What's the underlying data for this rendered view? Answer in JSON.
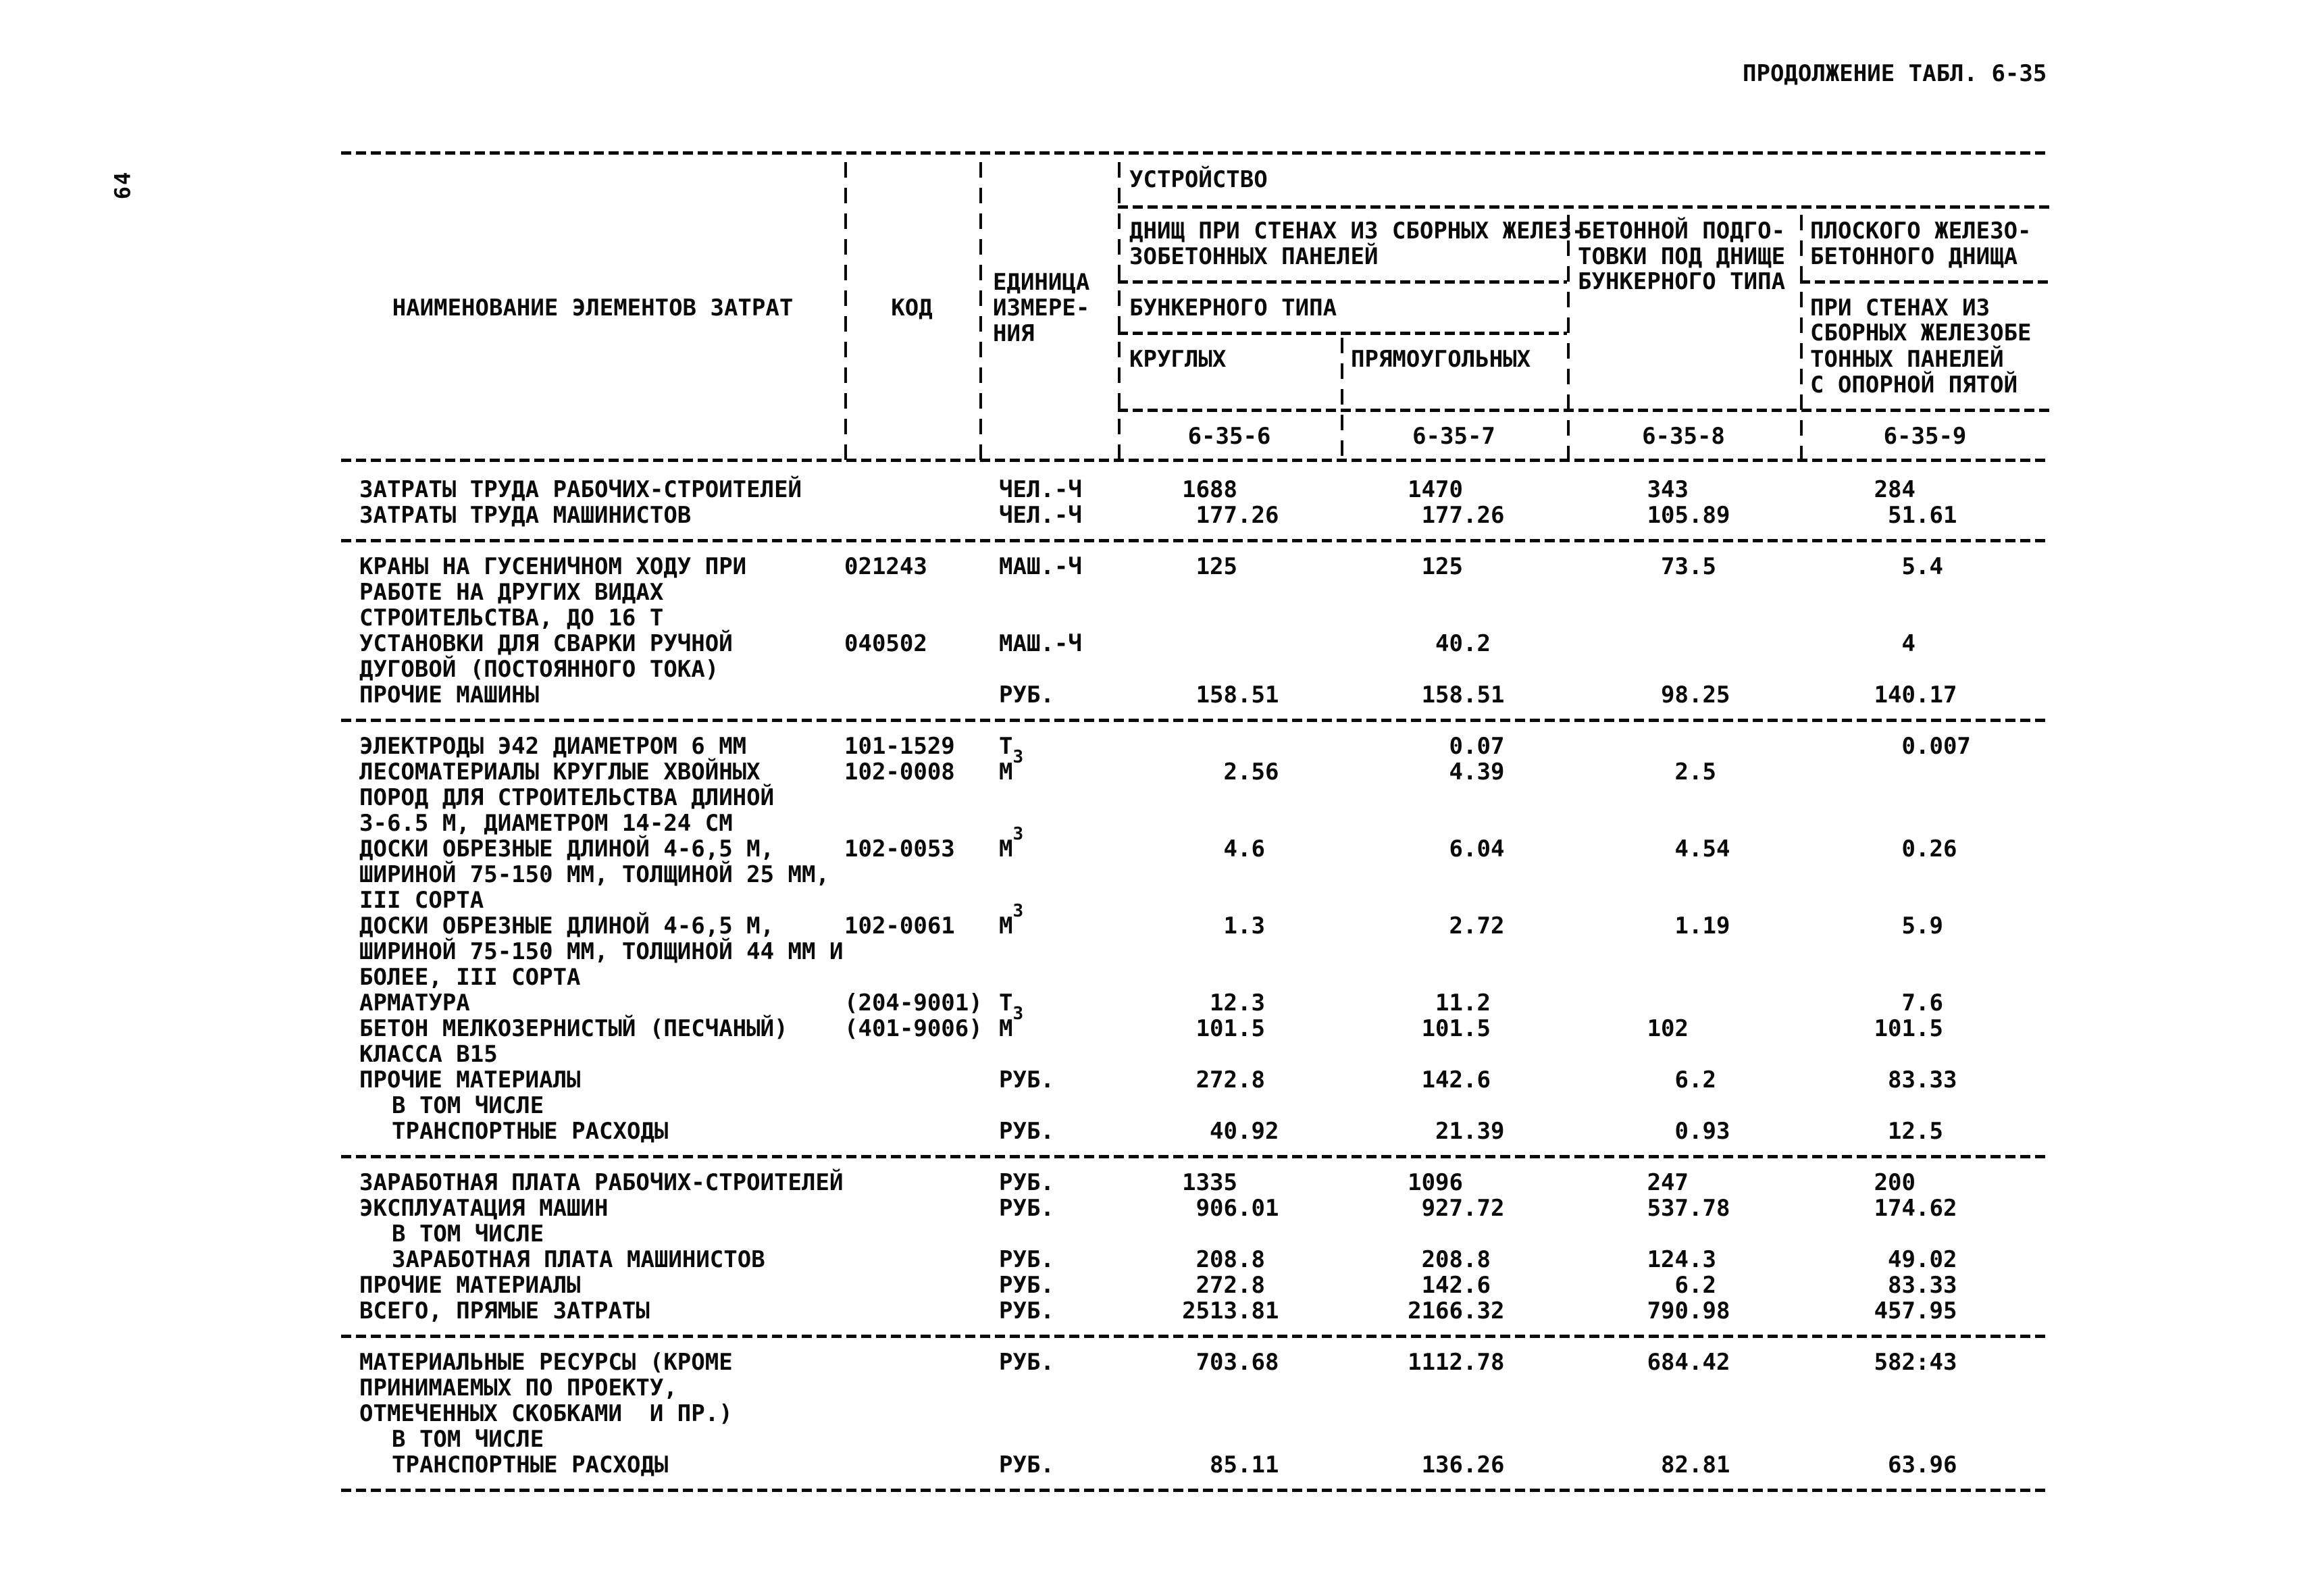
{
  "page": {
    "number": "64",
    "continuation": "ПРОДОЛЖЕНИЕ ТАБЛ. 6-35"
  },
  "table": {
    "header": {
      "col_name": "НАИМЕНОВАНИЕ ЭЛЕМЕНТОВ ЗАТРАТ",
      "col_code": "КОД",
      "col_unit_lines": [
        "ЕДИНИЦА",
        "ИЗМЕРЕ-",
        "НИЯ"
      ],
      "group_title": "УСТРОЙСТВО",
      "sub_a_line1": "ДНИЩ ПРИ СТЕНАХ ИЗ СБОРНЫХ ЖЕЛЕЗ-",
      "sub_a_line2": "ЗОБЕТОННЫХ ПАНЕЛЕЙ",
      "sub_a_mid": "БУНКЕРНОГО ТИПА",
      "sub_a_col1": "КРУГЛЫХ",
      "sub_a_col2": "ПРЯМОУГОЛЬНЫХ",
      "sub_b_line1": "БЕТОННОЙ ПОДГО-",
      "sub_b_line2": "ТОВКИ ПОД ДНИЩЕ",
      "sub_b_line3": "БУНКЕРНОГО ТИПА",
      "sub_c_line1": "ПЛОСКОГО ЖЕЛЕЗО-",
      "sub_c_line2": "БЕТОННОГО ДНИЩА",
      "sub_c_line3": "ПРИ СТЕНАХ ИЗ",
      "sub_c_line4": "СБОРНЫХ ЖЕЛЕЗОБЕ",
      "sub_c_line5": "ТОННЫХ ПАНЕЛЕЙ",
      "sub_c_line6": "С ОПОРНОЙ ПЯТОЙ",
      "codes": [
        "6-35-6",
        "6-35-7",
        "6-35-8",
        "6-35-9"
      ]
    },
    "body_lines": [
      {
        "text": "ЗАТРАТЫ ТРУДА РАБОЧИХ-СТРОИТЕЛЕЙ",
        "unit": "ЧЕЛ.-Ч",
        "v": [
          "1688",
          "1470",
          "343",
          "284"
        ]
      },
      {
        "text": "ЗАТРАТЫ ТРУДА МАШИНИСТОВ",
        "unit": "ЧЕЛ.-Ч",
        "v": [
          "177.26",
          "177.26",
          "105.89",
          "51.61"
        ]
      },
      {
        "type": "hr"
      },
      {
        "text": "КРАНЫ НА ГУСЕНИЧНОМ ХОДУ ПРИ",
        "code": "021243",
        "unit": "МАШ.-Ч",
        "v": [
          "125",
          "125",
          "73.5",
          "5.4"
        ]
      },
      {
        "text": "РАБОТЕ НА ДРУГИХ ВИДАХ"
      },
      {
        "text": "СТРОИТЕЛЬСТВА, ДО 16 Т"
      },
      {
        "text": "УСТАНОВКИ ДЛЯ СВАРКИ РУЧНОЙ",
        "code": "040502",
        "unit": "МАШ.-Ч",
        "v": [
          "",
          "40.2",
          "",
          "4"
        ]
      },
      {
        "text": "ДУГОВОЙ (ПОСТОЯННОГО ТОКА)"
      },
      {
        "text": "ПРОЧИЕ МАШИНЫ",
        "unit": "РУБ.",
        "v": [
          "158.51",
          "158.51",
          "98.25",
          "140.17"
        ]
      },
      {
        "type": "hr"
      },
      {
        "text": "ЭЛЕКТРОДЫ Э42 ДИАМЕТРОМ 6 ММ",
        "code": "101-1529",
        "unit": "Т",
        "v": [
          "",
          "0.07",
          "",
          "0.007"
        ]
      },
      {
        "text": "ЛЕСОМАТЕРИАЛЫ КРУГЛЫЕ ХВОЙНЫХ",
        "code": "102-0008",
        "unit": "М3",
        "sup": true,
        "v": [
          "2.56",
          "4.39",
          "2.5",
          ""
        ]
      },
      {
        "text": "ПОРОД ДЛЯ СТРОИТЕЛЬСТВА ДЛИНОЙ"
      },
      {
        "text": "3-6.5 М, ДИАМЕТРОМ 14-24 СМ"
      },
      {
        "text": "ДОСКИ ОБРЕЗНЫЕ ДЛИНОЙ 4-6,5 М,",
        "code": "102-0053",
        "unit": "М3",
        "sup": true,
        "v": [
          "4.6",
          "6.04",
          "4.54",
          "0.26"
        ]
      },
      {
        "text": "ШИРИНОЙ 75-150 ММ, ТОЛЩИНОЙ 25 ММ,"
      },
      {
        "text": "III СОРТА"
      },
      {
        "text": "ДОСКИ ОБРЕЗНЫЕ ДЛИНОЙ 4-6,5 М,",
        "code": "102-0061",
        "unit": "М3",
        "sup": true,
        "v": [
          "1.3",
          "2.72",
          "1.19",
          "5.9"
        ]
      },
      {
        "text": "ШИРИНОЙ 75-150 ММ, ТОЛЩИНОЙ 44 ММ И"
      },
      {
        "text": "БОЛЕЕ, III СОРТА"
      },
      {
        "text": "АРМАТУРА",
        "code": "(204-9001)",
        "unit": "Т",
        "v": [
          "12.3",
          "11.2",
          "",
          "7.6"
        ]
      },
      {
        "text": "БЕТОН МЕЛКОЗЕРНИСТЫЙ (ПЕСЧАНЫЙ)",
        "code": "(401-9006)",
        "unit": "М3",
        "sup": true,
        "v": [
          "101.5",
          "101.5",
          "102",
          "101.5"
        ]
      },
      {
        "text": "КЛАССА В15"
      },
      {
        "text": "ПРОЧИЕ МАТЕРИАЛЫ",
        "unit": "РУБ.",
        "v": [
          "272.8",
          "142.6",
          "6.2",
          "83.33"
        ]
      },
      {
        "text": "В ТОМ ЧИСЛЕ",
        "indent": 1
      },
      {
        "text": "ТРАНСПОРТНЫЕ РАСХОДЫ",
        "indent": 1,
        "unit": "РУБ.",
        "v": [
          "40.92",
          "21.39",
          "0.93",
          "12.5"
        ]
      },
      {
        "type": "hr"
      },
      {
        "text": "ЗАРАБОТНАЯ ПЛАТА РАБОЧИХ-СТРОИТЕЛЕЙ",
        "unit": "РУБ.",
        "v": [
          "1335",
          "1096",
          "247",
          "200"
        ]
      },
      {
        "text": "ЭКСПЛУАТАЦИЯ МАШИН",
        "unit": "РУБ.",
        "v": [
          "906.01",
          "927.72",
          "537.78",
          "174.62"
        ]
      },
      {
        "text": "В ТОМ ЧИСЛЕ",
        "indent": 1
      },
      {
        "text": "ЗАРАБОТНАЯ ПЛАТА МАШИНИСТОВ",
        "indent": 1,
        "unit": "РУБ.",
        "v": [
          "208.8",
          "208.8",
          "124.3",
          "49.02"
        ]
      },
      {
        "text": "ПРОЧИЕ МАТЕРИАЛЫ",
        "unit": "РУБ.",
        "v": [
          "272.8",
          "142.6",
          "6.2",
          "83.33"
        ]
      },
      {
        "text": "ВСЕГО, ПРЯМЫЕ ЗАТРАТЫ",
        "unit": "РУБ.",
        "v": [
          "2513.81",
          "2166.32",
          "790.98",
          "457.95"
        ]
      },
      {
        "type": "hr"
      },
      {
        "text": "МАТЕРИАЛЬНЫЕ РЕСУРСЫ (КРОМЕ",
        "unit": "РУБ.",
        "v": [
          "703.68",
          "1112.78",
          "684.42",
          "582:43"
        ]
      },
      {
        "text": "ПРИНИМАЕМЫХ ПО ПРОЕКТУ,"
      },
      {
        "text": "ОТМЕЧЕННЫХ СКОБКАМИ  И ПР.)"
      },
      {
        "text": "В ТОМ ЧИСЛЕ",
        "indent": 1
      },
      {
        "text": "ТРАНСПОРТНЫЕ РАСХОДЫ",
        "indent": 1,
        "unit": "РУБ.",
        "v": [
          "85.11",
          "136.26",
          "82.81",
          "63.96"
        ]
      },
      {
        "type": "hr"
      }
    ]
  }
}
